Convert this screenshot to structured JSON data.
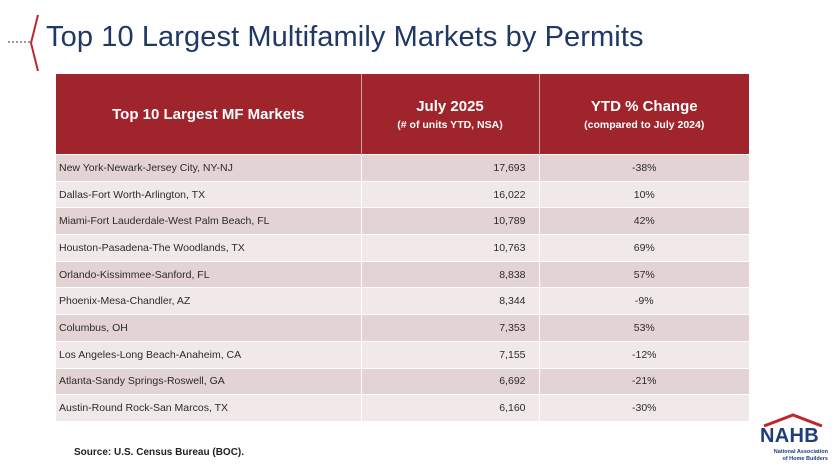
{
  "title": "Top 10 Largest Multifamily Markets by Permits",
  "table": {
    "headers": {
      "market": "Top 10 Largest MF Markets",
      "units": "July 2025",
      "units_sub": "(# of units YTD, NSA)",
      "change": "YTD % Change",
      "change_sub": "(compared to July 2024)"
    },
    "rows": [
      {
        "market": "New York-Newark-Jersey City, NY-NJ",
        "units": "17,693",
        "change": "-38%"
      },
      {
        "market": "Dallas-Fort Worth-Arlington, TX",
        "units": "16,022",
        "change": "10%"
      },
      {
        "market": "Miami-Fort Lauderdale-West Palm Beach, FL",
        "units": "10,789",
        "change": "42%"
      },
      {
        "market": "Houston-Pasadena-The Woodlands, TX",
        "units": "10,763",
        "change": "69%"
      },
      {
        "market": "Orlando-Kissimmee-Sanford, FL",
        "units": "8,838",
        "change": "57%"
      },
      {
        "market": "Phoenix-Mesa-Chandler, AZ",
        "units": "8,344",
        "change": "-9%"
      },
      {
        "market": "Columbus, OH",
        "units": "7,353",
        "change": "53%"
      },
      {
        "market": "Los Angeles-Long Beach-Anaheim, CA",
        "units": "7,155",
        "change": "-12%"
      },
      {
        "market": "Atlanta-Sandy Springs-Roswell, GA",
        "units": "6,692",
        "change": "-21%"
      },
      {
        "market": "Austin-Round Rock-San Marcos, TX",
        "units": "6,160",
        "change": "-30%"
      }
    ]
  },
  "source": "Source: U.S. Census Bureau (BOC).",
  "logo": {
    "name": "NAHB",
    "line1": "National Association",
    "line2": "of Home Builders",
    "icon": "house-roof-icon"
  },
  "colors": {
    "header_bg": "#a0242c",
    "row_dark": "#e4d3d4",
    "row_light": "#f1e9e9",
    "title": "#1f3864",
    "accent_red": "#c0272d"
  }
}
